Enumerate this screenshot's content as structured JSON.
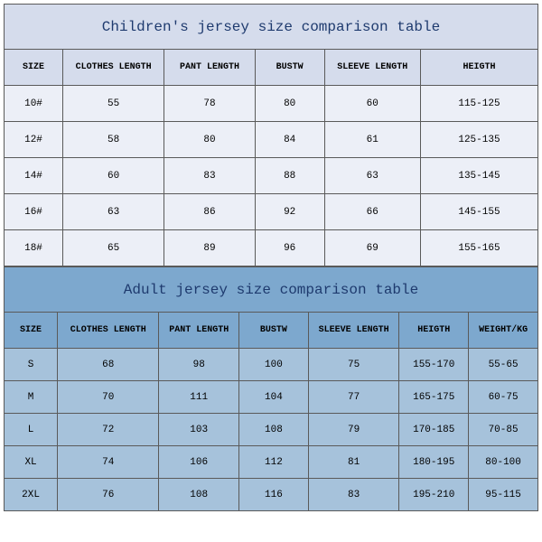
{
  "children": {
    "title": "Children's jersey size comparison table",
    "columns": [
      "SIZE",
      "CLOTHES LENGTH",
      "PANT LENGTH",
      "BUSTW",
      "SLEEVE LENGTH",
      "HEIGTH"
    ],
    "rows": [
      [
        "10#",
        "55",
        "78",
        "80",
        "60",
        "115-125"
      ],
      [
        "12#",
        "58",
        "80",
        "84",
        "61",
        "125-135"
      ],
      [
        "14#",
        "60",
        "83",
        "88",
        "63",
        "135-145"
      ],
      [
        "16#",
        "63",
        "86",
        "92",
        "66",
        "145-155"
      ],
      [
        "18#",
        "65",
        "89",
        "96",
        "69",
        "155-165"
      ]
    ],
    "title_bg": "#d5dcec",
    "title_color": "#1e3a6e",
    "header_bg": "#d5dcec",
    "row_bg": "#eceff7",
    "border_color": "#5a5a5a"
  },
  "adult": {
    "title": "Adult jersey size comparison table",
    "columns": [
      "SIZE",
      "CLOTHES LENGTH",
      "PANT LENGTH",
      "BUSTW",
      "SLEEVE LENGTH",
      "HEIGTH",
      "WEIGHT/KG"
    ],
    "rows": [
      [
        "S",
        "68",
        "98",
        "100",
        "75",
        "155-170",
        "55-65"
      ],
      [
        "M",
        "70",
        "111",
        "104",
        "77",
        "165-175",
        "60-75"
      ],
      [
        "L",
        "72",
        "103",
        "108",
        "79",
        "170-185",
        "70-85"
      ],
      [
        "XL",
        "74",
        "106",
        "112",
        "81",
        "180-195",
        "80-100"
      ],
      [
        "2XL",
        "76",
        "108",
        "116",
        "83",
        "195-210",
        "95-115"
      ]
    ],
    "title_bg": "#7da8ce",
    "title_color": "#1e3a6e",
    "header_bg": "#7da8ce",
    "row_bg": "#a6c2db",
    "border_color": "#5a5a5a"
  }
}
